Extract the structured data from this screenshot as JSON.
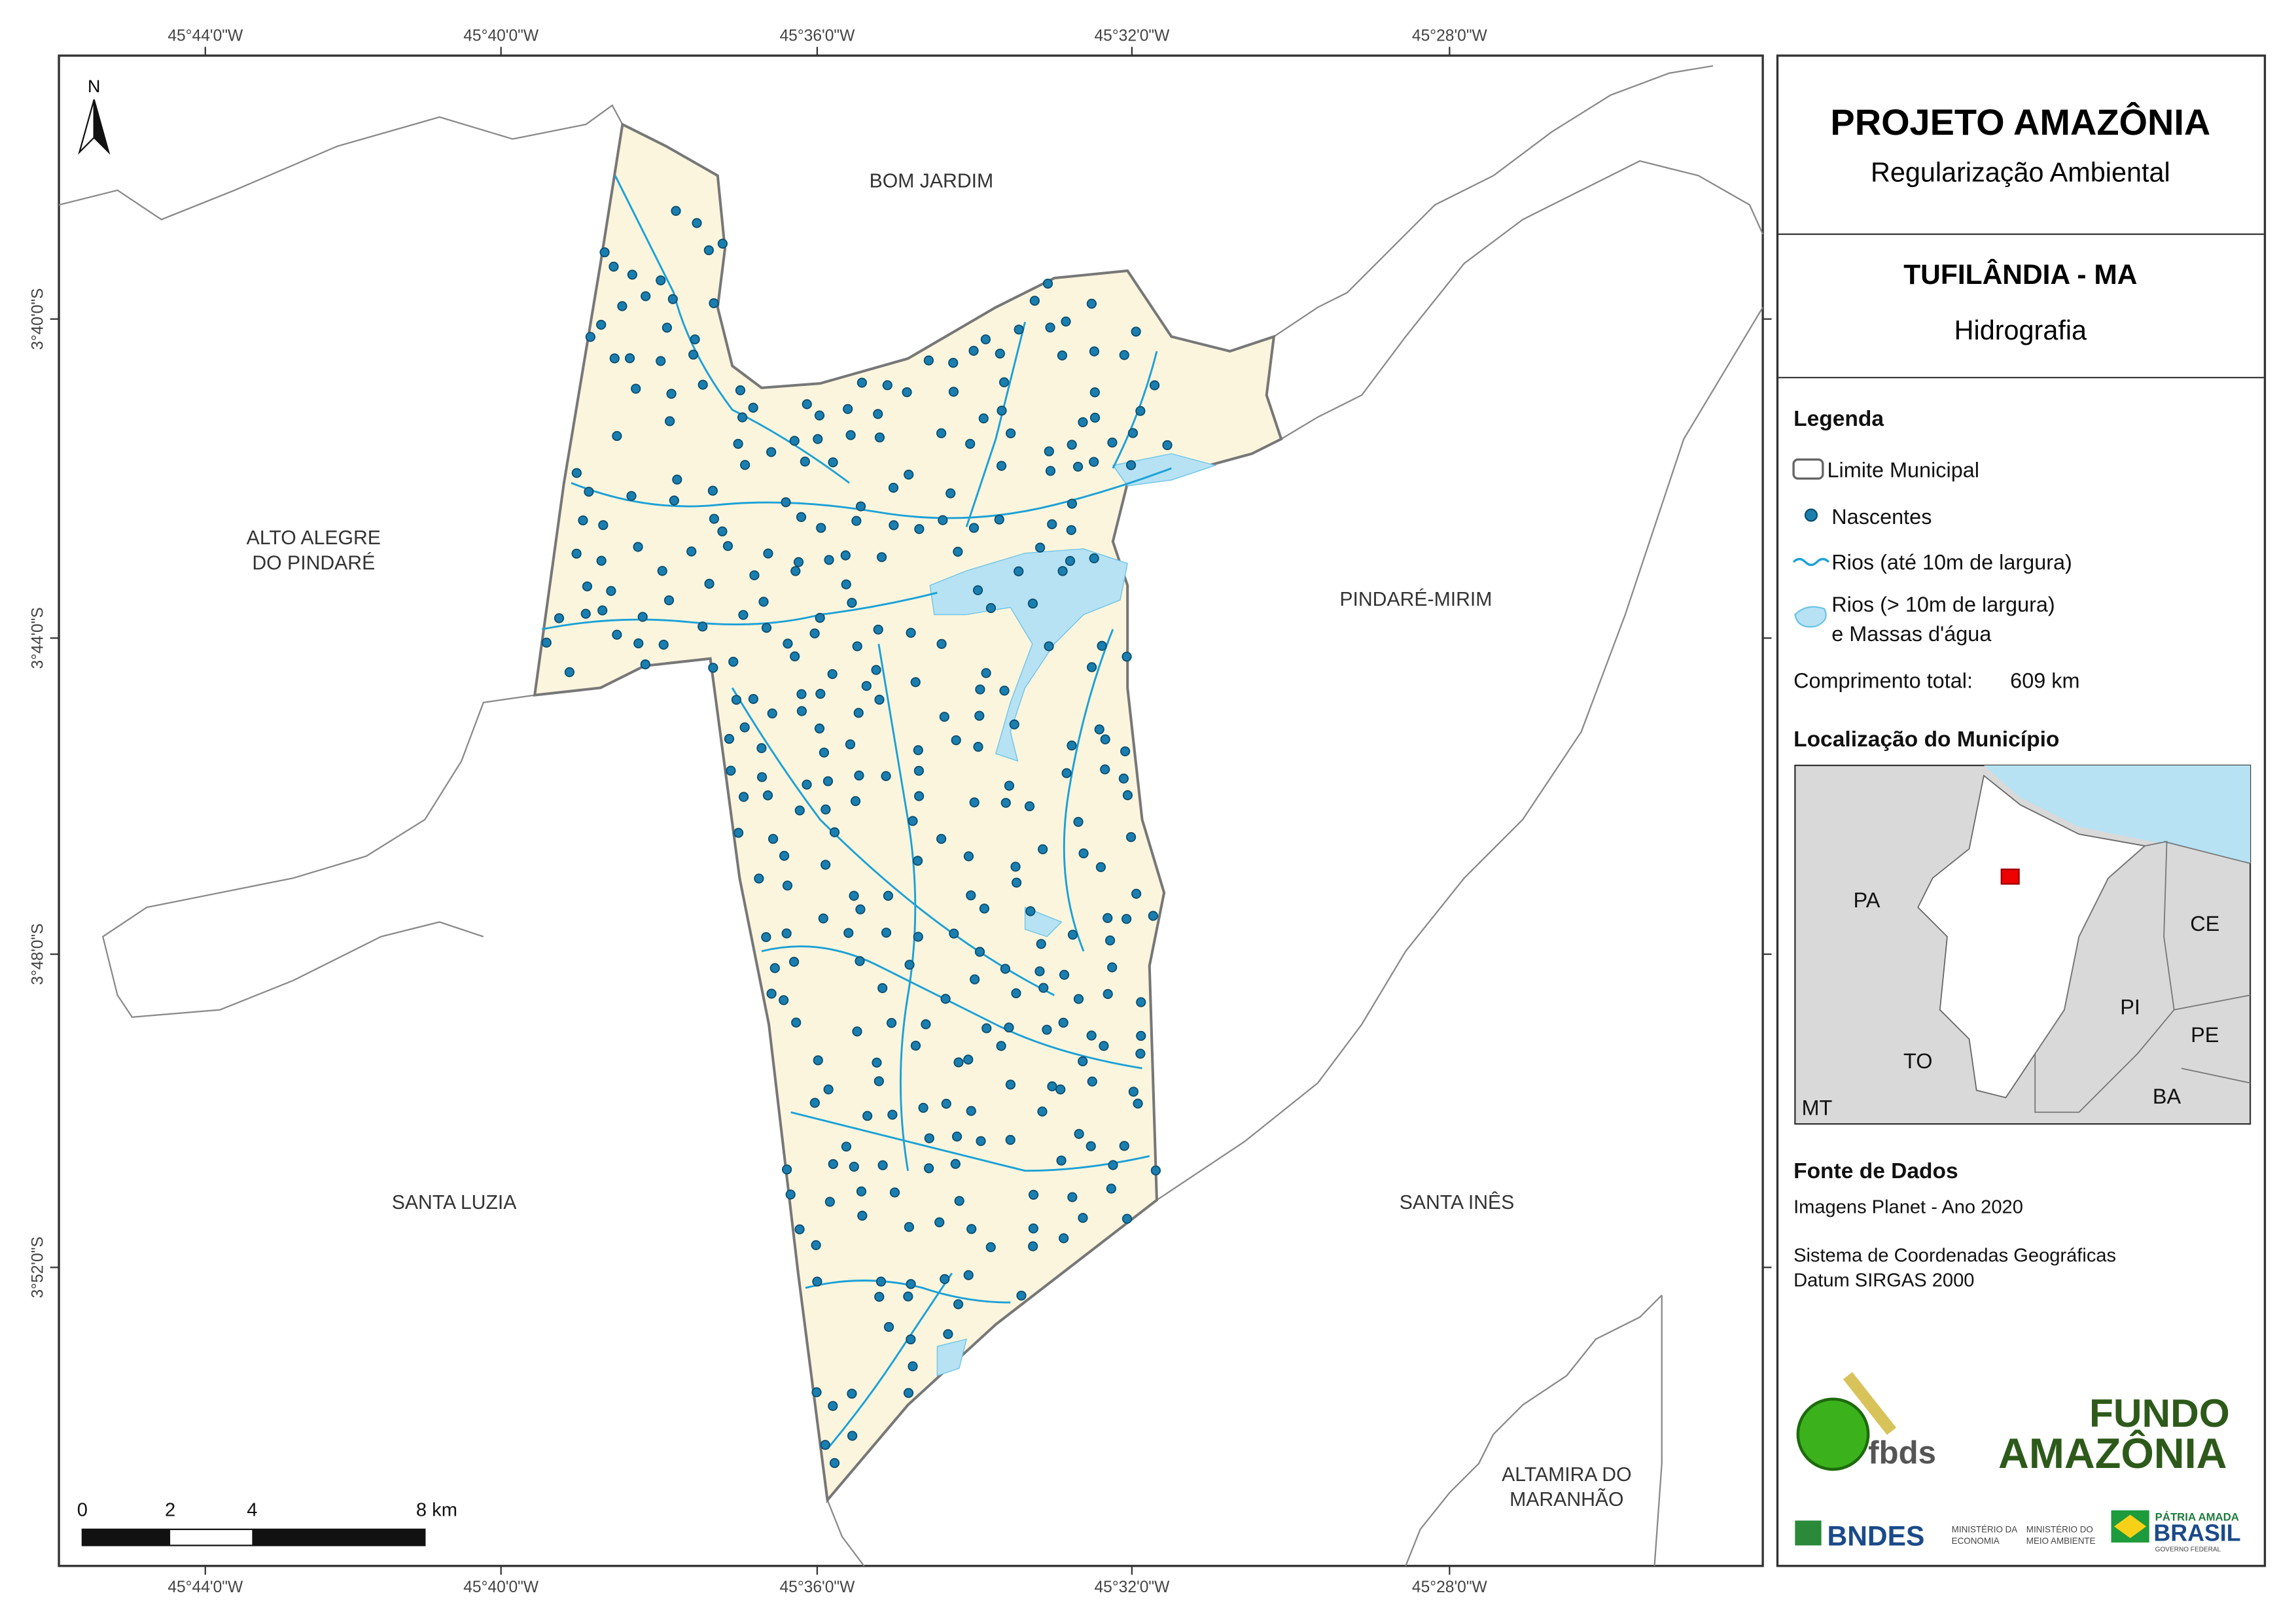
{
  "map": {
    "longitude_labels_top": [
      "45°44'0\"W",
      "45°40'0\"W",
      "45°36'0\"W",
      "45°32'0\"W",
      "45°28'0\"W"
    ],
    "longitude_labels_bottom": [
      "45°44'0\"W",
      "45°40'0\"W",
      "45°36'0\"W",
      "45°32'0\"W",
      "45°28'0\"W"
    ],
    "latitude_labels": [
      "3°40'0\"S",
      "3°44'0\"S",
      "3°48'0\"S",
      "3°52'0\"S"
    ],
    "neighbors": [
      {
        "lines": [
          "BOM JARDIM"
        ]
      },
      {
        "lines": [
          "ALTO ALEGRE",
          "DO PINDARÉ"
        ]
      },
      {
        "lines": [
          "PINDARÉ-MIRIM"
        ]
      },
      {
        "lines": [
          "SANTA LUZIA"
        ]
      },
      {
        "lines": [
          "SANTA INÊS"
        ]
      },
      {
        "lines": [
          "ALTAMIRA DO",
          "MARANHÃO"
        ]
      }
    ],
    "north_arrow": "N",
    "scale_bar": [
      "0",
      "2",
      "4",
      "8 km"
    ]
  },
  "panel": {
    "title": "PROJETO AMAZÔNIA",
    "subtitle": "Regularização Ambiental",
    "municipality": "TUFILÂNDIA - MA",
    "theme": "Hidrografia",
    "legend": {
      "title": "Legenda",
      "items": [
        "Limite Municipal",
        "Nascentes",
        "Rios (até 10m de largura)",
        [
          "Rios (> 10m de largura)",
          "e Massas d'água"
        ]
      ],
      "total_length_label": "Comprimento total:",
      "total_length": "609 km"
    },
    "location": {
      "title": "Localização do Município",
      "states": [
        "PA",
        "CE",
        "PI",
        "TO",
        "PE",
        "BA",
        "MT"
      ]
    },
    "sources": {
      "title": "Fonte de Dados",
      "lines": [
        "Imagens Planet - Ano 2020",
        "Sistema de Coordenadas Geográficas",
        "Datum SIRGAS 2000"
      ]
    },
    "logos": {
      "fbds": "fbds",
      "fundo": [
        "FUNDO",
        "AMAZÔNIA"
      ],
      "bndes": "BNDES",
      "ministries": [
        [
          "MINISTÉRIO DA",
          "ECONOMIA"
        ],
        [
          "MINISTÉRIO DO",
          "MEIO AMBIENTE"
        ]
      ],
      "government": [
        "PÁTRIA AMADA",
        "BRASIL",
        "GOVERNO FEDERAL"
      ]
    }
  }
}
